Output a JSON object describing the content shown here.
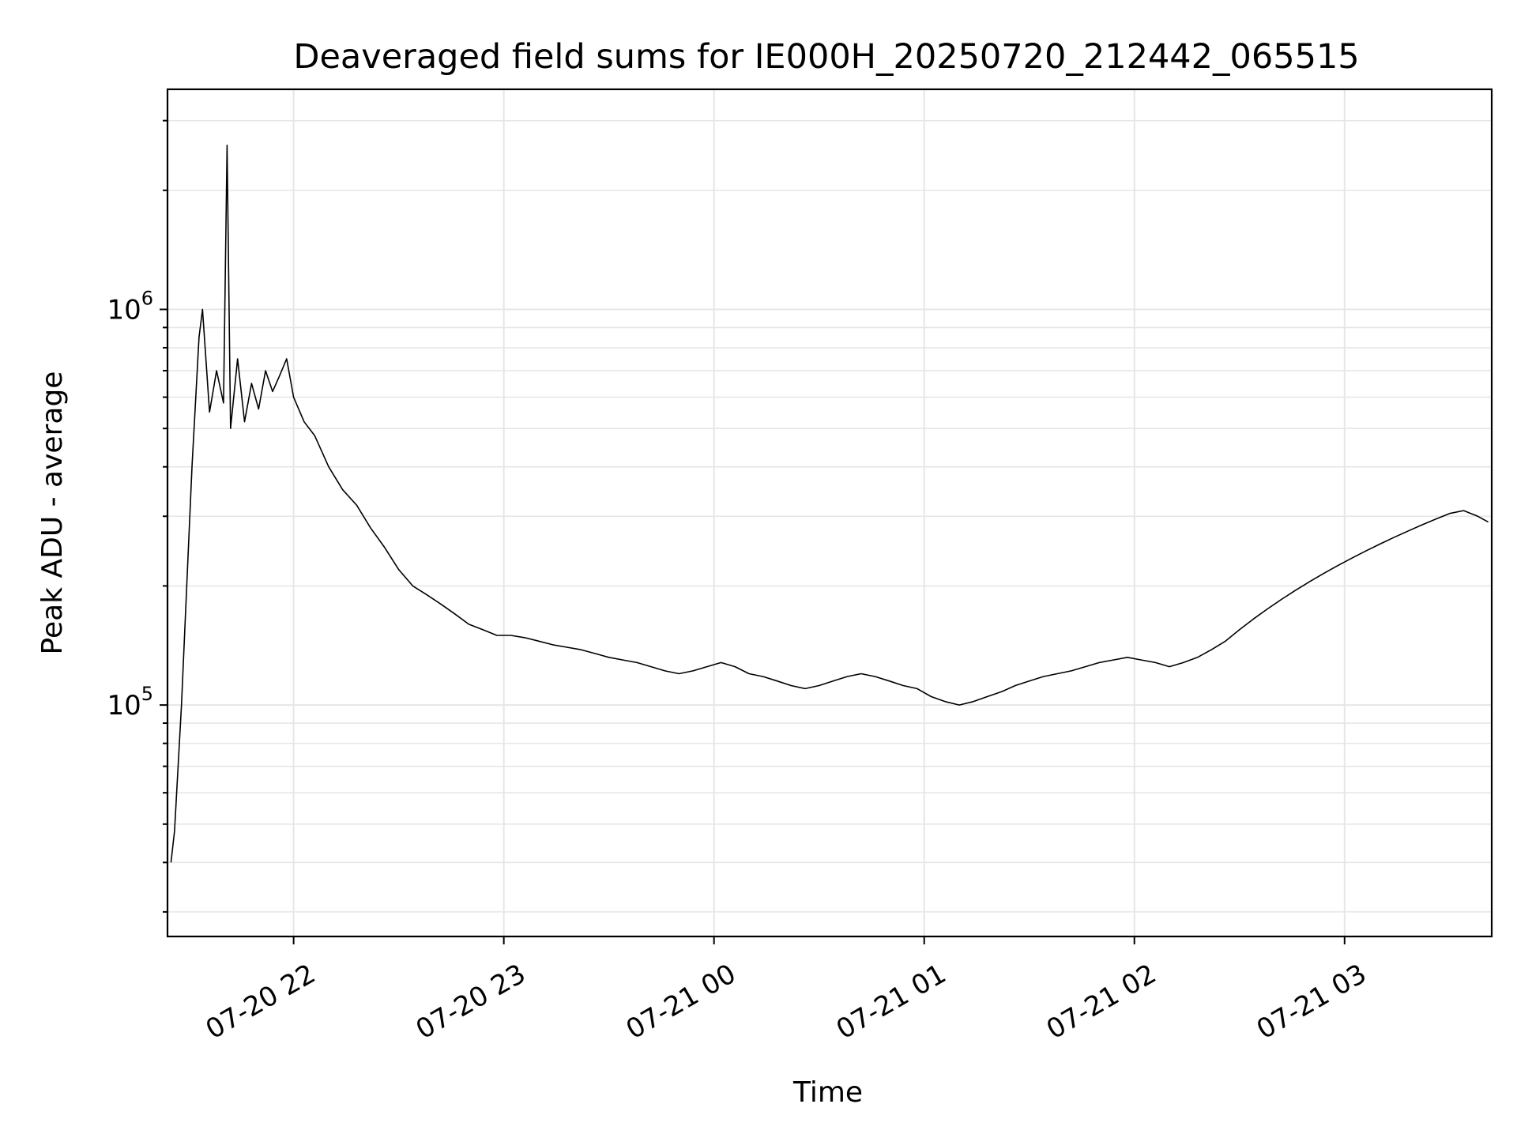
{
  "chart_data": {
    "type": "line",
    "title": "Deaveraged field sums for IE000H_20250720_212442_065515",
    "xlabel": "Time",
    "ylabel": "Peak ADU - average",
    "y_scale": "log",
    "x_tick_labels": [
      "07-20 22",
      "07-20 23",
      "07-21 00",
      "07-21 01",
      "07-21 02",
      "07-21 03"
    ],
    "x_ticks": [
      "2025-07-20 22:00",
      "2025-07-20 23:00",
      "2025-07-21 00:00",
      "2025-07-21 01:00",
      "2025-07-21 02:00",
      "2025-07-21 03:00"
    ],
    "xlim": [
      "2025-07-20 21:24",
      "2025-07-21 03:42"
    ],
    "y_ticks": [
      {
        "value": 100000,
        "base": "10",
        "exp": "5"
      },
      {
        "value": 1000000,
        "base": "10",
        "exp": "6"
      }
    ],
    "ylim": [
      26000,
      3600000
    ],
    "grid": true,
    "legend": "none",
    "line_color": "#000000",
    "series": [
      {
        "x": [
          "2025-07-20 21:25",
          "2025-07-20 21:26",
          "2025-07-20 21:28",
          "2025-07-20 21:29",
          "2025-07-20 21:31",
          "2025-07-20 21:33",
          "2025-07-20 21:34",
          "2025-07-20 21:36",
          "2025-07-20 21:38",
          "2025-07-20 21:40",
          "2025-07-20 21:41",
          "2025-07-20 21:42",
          "2025-07-20 21:44",
          "2025-07-20 21:46",
          "2025-07-20 21:48",
          "2025-07-20 21:50",
          "2025-07-20 21:52",
          "2025-07-20 21:54",
          "2025-07-20 21:56",
          "2025-07-20 21:58",
          "2025-07-20 22:00",
          "2025-07-20 22:03",
          "2025-07-20 22:06",
          "2025-07-20 22:10",
          "2025-07-20 22:14",
          "2025-07-20 22:18",
          "2025-07-20 22:22",
          "2025-07-20 22:26",
          "2025-07-20 22:30",
          "2025-07-20 22:34",
          "2025-07-20 22:38",
          "2025-07-20 22:42",
          "2025-07-20 22:46",
          "2025-07-20 22:50",
          "2025-07-20 22:54",
          "2025-07-20 22:58",
          "2025-07-20 23:02",
          "2025-07-20 23:06",
          "2025-07-20 23:10",
          "2025-07-20 23:14",
          "2025-07-20 23:18",
          "2025-07-20 23:22",
          "2025-07-20 23:26",
          "2025-07-20 23:30",
          "2025-07-20 23:34",
          "2025-07-20 23:38",
          "2025-07-20 23:42",
          "2025-07-20 23:46",
          "2025-07-20 23:50",
          "2025-07-20 23:54",
          "2025-07-20 23:58",
          "2025-07-21 00:02",
          "2025-07-21 00:06",
          "2025-07-21 00:10",
          "2025-07-21 00:14",
          "2025-07-21 00:18",
          "2025-07-21 00:22",
          "2025-07-21 00:26",
          "2025-07-21 00:30",
          "2025-07-21 00:34",
          "2025-07-21 00:38",
          "2025-07-21 00:42",
          "2025-07-21 00:46",
          "2025-07-21 00:50",
          "2025-07-21 00:54",
          "2025-07-21 00:58",
          "2025-07-21 01:02",
          "2025-07-21 01:06",
          "2025-07-21 01:10",
          "2025-07-21 01:14",
          "2025-07-21 01:18",
          "2025-07-21 01:22",
          "2025-07-21 01:26",
          "2025-07-21 01:30",
          "2025-07-21 01:34",
          "2025-07-21 01:38",
          "2025-07-21 01:42",
          "2025-07-21 01:46",
          "2025-07-21 01:50",
          "2025-07-21 01:54",
          "2025-07-21 01:58",
          "2025-07-21 02:02",
          "2025-07-21 02:06",
          "2025-07-21 02:10",
          "2025-07-21 02:14",
          "2025-07-21 02:18",
          "2025-07-21 02:22",
          "2025-07-21 02:26",
          "2025-07-21 02:30",
          "2025-07-21 02:34",
          "2025-07-21 02:38",
          "2025-07-21 02:42",
          "2025-07-21 02:46",
          "2025-07-21 02:50",
          "2025-07-21 02:54",
          "2025-07-21 02:58",
          "2025-07-21 03:02",
          "2025-07-21 03:06",
          "2025-07-21 03:10",
          "2025-07-21 03:14",
          "2025-07-21 03:18",
          "2025-07-21 03:22",
          "2025-07-21 03:26",
          "2025-07-21 03:30",
          "2025-07-21 03:34",
          "2025-07-21 03:38",
          "2025-07-21 03:41"
        ],
        "y": [
          40000,
          48000,
          100000,
          160000,
          400000,
          850000,
          1000000,
          550000,
          700000,
          580000,
          2600000,
          500000,
          750000,
          520000,
          650000,
          560000,
          700000,
          620000,
          680000,
          750000,
          600000,
          520000,
          480000,
          400000,
          350000,
          320000,
          280000,
          250000,
          220000,
          200000,
          190000,
          180000,
          170000,
          160000,
          155000,
          150000,
          150000,
          148000,
          145000,
          142000,
          140000,
          138000,
          135000,
          132000,
          130000,
          128000,
          125000,
          122000,
          120000,
          122000,
          125000,
          128000,
          125000,
          120000,
          118000,
          115000,
          112000,
          110000,
          112000,
          115000,
          118000,
          120000,
          118000,
          115000,
          112000,
          110000,
          105000,
          102000,
          100000,
          102000,
          105000,
          108000,
          112000,
          115000,
          118000,
          120000,
          122000,
          125000,
          128000,
          130000,
          132000,
          130000,
          128000,
          125000,
          128000,
          132000,
          138000,
          145000,
          155000,
          165000,
          175000,
          185000,
          195000,
          205000,
          215000,
          225000,
          235000,
          245000,
          255000,
          265000,
          275000,
          285000,
          295000,
          305000,
          310000,
          300000,
          290000
        ]
      }
    ]
  }
}
